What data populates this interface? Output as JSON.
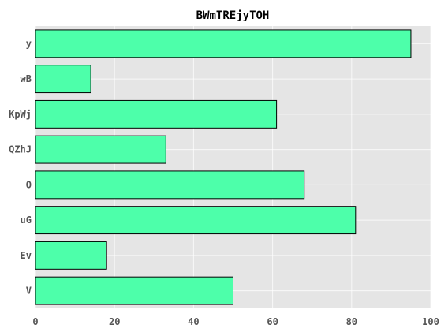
{
  "chart_data": {
    "type": "bar",
    "orientation": "horizontal",
    "title": "BWmTREjyTOH",
    "xlabel": "",
    "ylabel": "",
    "categories": [
      "y",
      "wB",
      "KpWj",
      "QZhJ",
      "O",
      "uG",
      "Ev",
      "V"
    ],
    "values": [
      95,
      14,
      61,
      33,
      68,
      81,
      18,
      50
    ],
    "xlim": [
      0,
      100
    ],
    "xticks": [
      "0",
      "20",
      "40",
      "60",
      "80",
      "100"
    ],
    "grid": true,
    "bar_color": "#4dffaa",
    "background_color": "#e5e5e5"
  }
}
